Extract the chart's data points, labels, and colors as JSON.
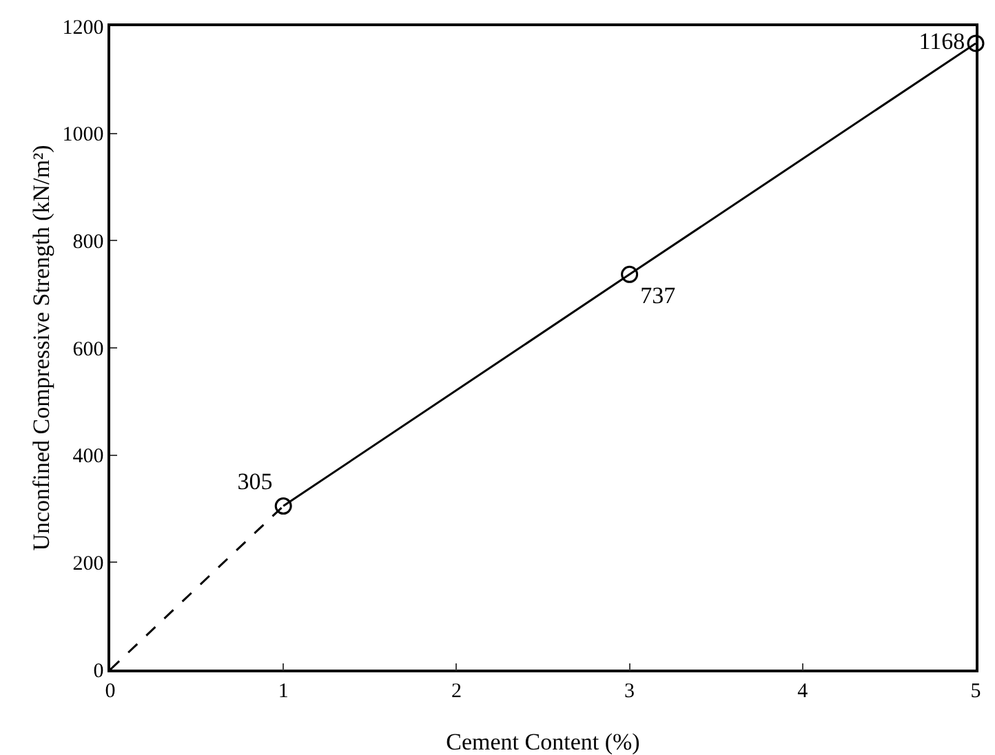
{
  "chart_data": {
    "type": "line",
    "xlabel": "Cement Content (%)",
    "ylabel": "Unconfined Compressive Strength (kN/m²)",
    "xlim": [
      0,
      5
    ],
    "xticks": [
      0,
      1,
      2,
      3,
      4,
      5
    ],
    "ylim": [
      0,
      1200
    ],
    "yticks": [
      0,
      200,
      400,
      600,
      800,
      1000,
      1200
    ],
    "grid": false,
    "series": [
      {
        "color": "#000000",
        "x": [
          1,
          3,
          5
        ],
        "values": [
          305,
          737,
          1168
        ],
        "marker": "circle",
        "line_style": "solid",
        "value_labels": [
          "305",
          "737",
          "1168"
        ]
      },
      {
        "color": "#000000",
        "x": [
          0,
          1
        ],
        "values": [
          0,
          305
        ],
        "marker": "none",
        "line_style": "dashed"
      }
    ]
  }
}
